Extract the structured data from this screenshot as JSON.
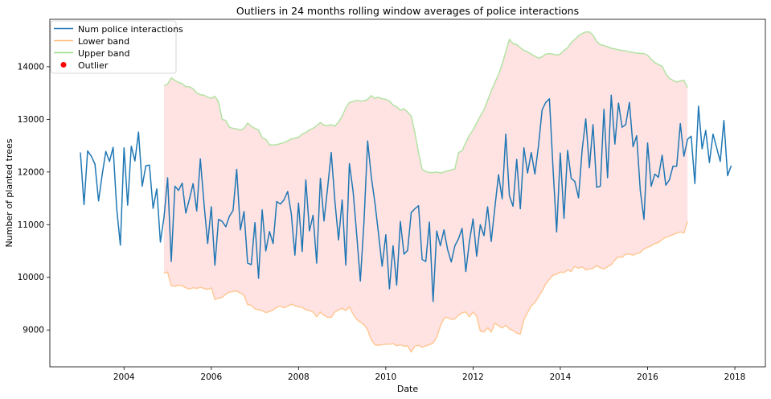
{
  "chart_data": {
    "type": "line",
    "title": "Outliers in 24 months rolling window averages of police interactions",
    "xlabel": "Date",
    "ylabel": "Number of planted trees",
    "xlim": [
      2002.3,
      2018.7
    ],
    "ylim": [
      8300,
      14900
    ],
    "x_ticks": [
      2004,
      2006,
      2008,
      2010,
      2012,
      2014,
      2016,
      2018
    ],
    "y_ticks": [
      9000,
      10000,
      11000,
      12000,
      13000,
      14000
    ],
    "grid": false,
    "legend_position": "top-left",
    "legend": [
      {
        "label": "Num police interactions",
        "color": "#1f77b4",
        "kind": "line"
      },
      {
        "label": "Lower band",
        "color": "#ffbb78",
        "kind": "line"
      },
      {
        "label": "Upper band",
        "color": "#98df8a",
        "kind": "line"
      },
      {
        "label": "Outlier",
        "color": "#ff0000",
        "kind": "marker"
      }
    ],
    "band_fill_color": "#ffcccc",
    "series": [
      {
        "name": "Num police interactions",
        "color": "#1f77b4",
        "x_start": "2003-01",
        "frequency": "monthly",
        "values": [
          12370,
          11380,
          12400,
          12300,
          12150,
          11450,
          11950,
          12390,
          12200,
          12470,
          11300,
          10610,
          12460,
          11370,
          12490,
          12210,
          12760,
          11730,
          12120,
          12130,
          11310,
          11680,
          10670,
          11140,
          11890,
          10300,
          11730,
          11650,
          11790,
          11220,
          11490,
          11780,
          11260,
          12250,
          11410,
          10640,
          11340,
          10230,
          11100,
          11060,
          10960,
          11160,
          11270,
          12050,
          10900,
          11250,
          10270,
          10240,
          11040,
          9980,
          11280,
          10500,
          10870,
          10640,
          11440,
          11390,
          11470,
          11630,
          11210,
          10420,
          11410,
          10490,
          11850,
          10880,
          11180,
          10270,
          11880,
          11070,
          11700,
          12370,
          11440,
          10710,
          11470,
          10230,
          12160,
          11630,
          10810,
          9930,
          11040,
          12590,
          11910,
          11420,
          10830,
          10210,
          10810,
          9780,
          10600,
          9850,
          11060,
          10440,
          10510,
          11230,
          11300,
          11360,
          10340,
          10300,
          11050,
          9540,
          10880,
          10600,
          10900,
          10530,
          10290,
          10600,
          10730,
          10930,
          10110,
          10680,
          11110,
          10400,
          11000,
          10790,
          11340,
          10680,
          11320,
          11950,
          11490,
          12720,
          11550,
          11350,
          12240,
          11300,
          12460,
          11980,
          12370,
          11960,
          12500,
          13180,
          13320,
          13390,
          12060,
          10860,
          12360,
          11120,
          12410,
          11880,
          11820,
          11510,
          12420,
          13010,
          12080,
          12900,
          11710,
          11730,
          13190,
          11890,
          13460,
          12530,
          13310,
          12850,
          12900,
          13320,
          12480,
          12690,
          11650,
          11100,
          12550,
          11730,
          11960,
          11900,
          12320,
          11750,
          11850,
          12110,
          12110,
          12920,
          12300,
          12620,
          12680,
          11780,
          13250,
          12440,
          12790,
          12180,
          12720,
          12460,
          12200,
          12980,
          11930,
          12120
        ]
      },
      {
        "name": "Lower band",
        "color": "#ffbb78",
        "x_start": "2004-12",
        "frequency": "monthly",
        "values": [
          10080,
          10100,
          9840,
          9830,
          9850,
          9840,
          9800,
          9780,
          9800,
          9790,
          9810,
          9790,
          9770,
          9800,
          9580,
          9600,
          9620,
          9680,
          9720,
          9730,
          9740,
          9700,
          9660,
          9480,
          9470,
          9400,
          9380,
          9370,
          9330,
          9350,
          9380,
          9430,
          9450,
          9420,
          9450,
          9490,
          9460,
          9440,
          9430,
          9380,
          9370,
          9340,
          9250,
          9340,
          9280,
          9240,
          9240,
          9340,
          9380,
          9410,
          9370,
          9440,
          9300,
          9200,
          9150,
          9100,
          9000,
          8810,
          8720,
          8710,
          8720,
          8730,
          8730,
          8740,
          8700,
          8720,
          8690,
          8700,
          8580,
          8690,
          8710,
          8670,
          8700,
          8720,
          8750,
          8860,
          9070,
          9220,
          9240,
          9200,
          9210,
          9280,
          9330,
          9340,
          9250,
          9340,
          9260,
          8980,
          8960,
          9040,
          8960,
          9130,
          9080,
          9040,
          9090,
          9020,
          8990,
          8940,
          8920,
          9200,
          9330,
          9460,
          9520,
          9630,
          9740,
          9870,
          9960,
          10040,
          10060,
          10100,
          10090,
          10140,
          10110,
          10210,
          10170,
          10200,
          10140,
          10160,
          10170,
          10220,
          10180,
          10160,
          10200,
          10240,
          10330,
          10390,
          10380,
          10440,
          10440,
          10420,
          10450,
          10470,
          10540,
          10570,
          10600,
          10640,
          10660,
          10720,
          10760,
          10780,
          10810,
          10840,
          10860,
          10840,
          11060
        ]
      },
      {
        "name": "Upper band",
        "color": "#98df8a",
        "x_start": "2004-12",
        "frequency": "monthly",
        "values": [
          13640,
          13670,
          13790,
          13740,
          13700,
          13680,
          13620,
          13620,
          13580,
          13500,
          13470,
          13460,
          13420,
          13400,
          13440,
          13330,
          13000,
          12980,
          12850,
          12830,
          12820,
          12790,
          12830,
          12930,
          12870,
          12830,
          12800,
          12650,
          12620,
          12520,
          12510,
          12520,
          12540,
          12560,
          12590,
          12630,
          12640,
          12660,
          12720,
          12750,
          12800,
          12830,
          12880,
          12940,
          12890,
          12880,
          12900,
          12870,
          12950,
          13060,
          13220,
          13320,
          13340,
          13360,
          13350,
          13350,
          13380,
          13450,
          13400,
          13420,
          13390,
          13380,
          13350,
          13270,
          13240,
          13170,
          13200,
          13140,
          13060,
          12750,
          12370,
          12050,
          12010,
          11990,
          11990,
          12000,
          11980,
          12000,
          12020,
          12040,
          12060,
          12370,
          12400,
          12560,
          12700,
          12800,
          12930,
          13060,
          13180,
          13360,
          13540,
          13700,
          13850,
          14050,
          14280,
          14520,
          14440,
          14420,
          14360,
          14310,
          14280,
          14240,
          14200,
          14160,
          14190,
          14240,
          14250,
          14240,
          14220,
          14240,
          14310,
          14360,
          14460,
          14520,
          14590,
          14630,
          14660,
          14660,
          14600,
          14480,
          14420,
          14400,
          14380,
          14350,
          14340,
          14320,
          14310,
          14300,
          14280,
          14270,
          14260,
          14250,
          14250,
          14220,
          14140,
          14080,
          14040,
          14010,
          13870,
          13780,
          13740,
          13710,
          13730,
          13740,
          13600
        ]
      },
      {
        "name": "Outlier",
        "color": "#ff0000",
        "values": []
      }
    ]
  }
}
